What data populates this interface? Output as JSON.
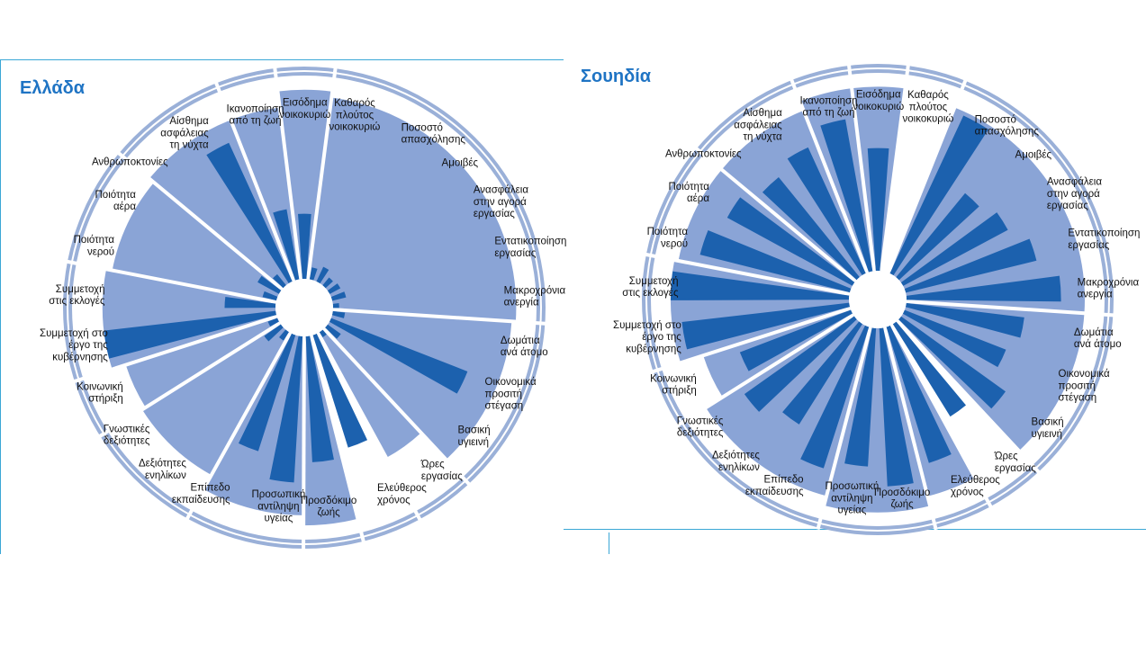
{
  "colors": {
    "ring": "#9ab0d8",
    "sector": "#8aa4d6",
    "bar": "#1c61ae",
    "frame": "#3aa7d6",
    "title": "#1f74c4"
  },
  "chart_data": [
    {
      "type": "radial-bar",
      "title": "Ελλάδα",
      "categories": [
        "Εισόδημα νοικοκυριώ",
        "Καθαρός πλούτος νοικοκυριώ",
        "Ποσοστό απασχόλησης",
        "Αμοιβές",
        "Ανασφάλεια στην αγορά εργασίας",
        "Εντατικοποίηση εργασίας",
        "Μακροχρόνια ανεργία",
        "Δωμάτια ανά άτομο",
        "Οικονομικά προσιτή στέγαση",
        "Βασική υγιεινή",
        "Ώρες εργασίας",
        "Ελεύθερος χρόνος",
        "Προσδόκιμο ζωής",
        "Προσωπική αντίληψη υγείας",
        "Επίπεδο εκπαίδευσης",
        "Δεξιότητες ενηλίκων",
        "Γνωστικές δεξιότητες",
        "Κοινωνική στήριξη",
        "Συμμετοχή στο έργο της κυβέρνησης",
        "Συμμετοχή στις εκλογές",
        "Ποιότητα νερού",
        "Ποιότητα αέρα",
        "Ανθρωποκτονίες",
        "Αίσθημα ασφάλειας τη νύχτα",
        "Ικανοποίηση από τη ζωή"
      ],
      "values": [
        0.32,
        0.06,
        0.08,
        0.05,
        0.06,
        0.07,
        0.03,
        0.06,
        0.72,
        0.08,
        0.03,
        0.58,
        0.62,
        0.72,
        0.6,
        0.05,
        0.1,
        0.05,
        0.85,
        0.25,
        0.07,
        0.12,
        0.07,
        0.75,
        0.35
      ],
      "sector_groups": [
        {
          "start": 0,
          "end": 0,
          "level": 0.93
        },
        {
          "start": 1,
          "end": 6,
          "level": 0.9
        },
        {
          "start": 7,
          "end": 9,
          "level": 0.88
        },
        {
          "start": 10,
          "end": 10,
          "level": 0.7
        },
        {
          "start": 11,
          "end": 11,
          "level": 0.0
        },
        {
          "start": 12,
          "end": 12,
          "level": 0.93
        },
        {
          "start": 13,
          "end": 14,
          "level": 0.88
        },
        {
          "start": 15,
          "end": 16,
          "level": 0.8
        },
        {
          "start": 17,
          "end": 17,
          "level": 0.78
        },
        {
          "start": 18,
          "end": 19,
          "level": 0.85
        },
        {
          "start": 20,
          "end": 21,
          "level": 0.82
        },
        {
          "start": 22,
          "end": 23,
          "level": 0.85
        },
        {
          "start": 24,
          "end": 24,
          "level": 0.85
        }
      ]
    },
    {
      "type": "radial-bar",
      "title": "Σουηδία",
      "categories": [
        "Εισόδημα νοικοκυριώ",
        "Καθαρός πλούτος νοικοκυριώ",
        "Ποσοστό απασχόλησης",
        "Αμοιβές",
        "Ανασφάλεια στην αγορά εργασίας",
        "Εντατικοποίηση εργασίας",
        "Μακροχρόνια ανεργία",
        "Δωμάτια ανά άτομο",
        "Οικονομικά προσιτή στέγαση",
        "Βασική υγιεινή",
        "Ώρες εργασίας",
        "Ελεύθερος χρόνος",
        "Προσδόκιμο ζωής",
        "Προσωπική αντίληψη υγείας",
        "Επίπεδο εκπαίδευσης",
        "Δεξιότητες ενηλίκων",
        "Γνωστικές δεξιότητες",
        "Κοινωνική στήριξη",
        "Συμμετοχή στο έργο της κυβέρνησης",
        "Συμμετοχή στις εκλογές",
        "Ποιότητα νερού",
        "Ποιότητα αέρα",
        "Ανθρωποκτονίες",
        "Αίσθημα ασφάλειας τη νύχτα",
        "Ικανοποίηση από τη ζωή"
      ],
      "values": [
        0.62,
        0.0,
        0.88,
        0.55,
        0.6,
        0.68,
        0.78,
        0.6,
        0.55,
        0.65,
        0.55,
        0.72,
        0.8,
        0.7,
        0.75,
        0.6,
        0.68,
        0.6,
        0.85,
        0.9,
        0.78,
        0.72,
        0.65,
        0.7,
        0.78
      ],
      "sector_groups": [
        {
          "start": 0,
          "end": 0,
          "level": 0.93
        },
        {
          "start": 1,
          "end": 1,
          "level": 0.0
        },
        {
          "start": 2,
          "end": 6,
          "level": 0.9
        },
        {
          "start": 7,
          "end": 9,
          "level": 0.9
        },
        {
          "start": 10,
          "end": 10,
          "level": 0.0
        },
        {
          "start": 11,
          "end": 11,
          "level": 0.88
        },
        {
          "start": 12,
          "end": 13,
          "level": 0.93
        },
        {
          "start": 14,
          "end": 16,
          "level": 0.88
        },
        {
          "start": 17,
          "end": 17,
          "level": 0.78
        },
        {
          "start": 18,
          "end": 19,
          "level": 0.9
        },
        {
          "start": 20,
          "end": 21,
          "level": 0.88
        },
        {
          "start": 22,
          "end": 23,
          "level": 0.88
        },
        {
          "start": 24,
          "end": 24,
          "level": 0.93
        }
      ]
    }
  ],
  "labels": {
    "greece": [
      [
        "Εισόδημα",
        "νοικοκυριώ"
      ],
      [
        "Καθαρός",
        "πλούτος",
        "νοικοκυριώ"
      ],
      [
        "Ποσοστό",
        "απασχόλησης"
      ],
      [
        "Αμοιβές"
      ],
      [
        "Ανασφάλεια",
        "στην αγορά",
        "εργασίας"
      ],
      [
        "Εντατικοποίηση",
        "εργασίας"
      ],
      [
        "Μακροχρόνια",
        "ανεργία"
      ],
      [
        "Δωμάτια",
        "ανά άτομο"
      ],
      [
        "Οικονομικά",
        "προσιτή",
        "στέγαση"
      ],
      [
        "Βασική",
        "υγιεινή"
      ],
      [
        "Ώρες",
        "εργασίας"
      ],
      [
        "Ελεύθερος",
        "χρόνος"
      ],
      [
        "Προσδόκιμο",
        "ζωής"
      ],
      [
        "Προσωπική",
        "αντίληψη",
        "υγείας"
      ],
      [
        "Επίπεδο",
        "εκπαίδευσης"
      ],
      [
        "Δεξιότητες",
        "ενηλίκων"
      ],
      [
        "Γνωστικές",
        "δεξιότητες"
      ],
      [
        "Κοινωνική",
        "στήριξη"
      ],
      [
        "Συμμετοχή στο",
        "έργο της",
        "κυβέρνησης"
      ],
      [
        "Συμμετοχή",
        "στις εκλογές"
      ],
      [
        "Ποιότητα",
        "νερού"
      ],
      [
        "Ποιότητα",
        "αέρα"
      ],
      [
        "Ανθρωποκτονίες"
      ],
      [
        "Αίσθημα",
        "ασφάλειας",
        "τη νύχτα"
      ],
      [
        "Ικανοποίηση",
        "από τη ζωή"
      ]
    ],
    "sweden": [
      [
        "Εισόδημα",
        "νοικοκυριώ"
      ],
      [
        "Καθαρός",
        "πλούτος",
        "νοικοκυριώ"
      ],
      [
        "Ποσοστό",
        "απασχόλησης"
      ],
      [
        "Αμοιβές"
      ],
      [
        "Ανασφάλεια",
        "στην αγορά",
        "εργασίας"
      ],
      [
        "Εντατικοποίηση",
        "εργασίας"
      ],
      [
        "Μακροχρόνια",
        "ανεργία"
      ],
      [
        "Δωμάτια",
        "ανά άτομο"
      ],
      [
        "Οικονομικά",
        "προσιτή",
        "στέγαση"
      ],
      [
        "Βασική",
        "υγιεινή"
      ],
      [
        "Ώρες",
        "εργασίας"
      ],
      [
        "Ελεύθερος",
        "χρόνος"
      ],
      [
        "Προσδόκιμο",
        "ζωής"
      ],
      [
        "Προσωπική",
        "αντίληψη",
        "υγείας"
      ],
      [
        "Επίπεδο",
        "εκπαίδευσης"
      ],
      [
        "Δεξιότητες",
        "ενηλίκων"
      ],
      [
        "Γνωστικές",
        "δεξιότητες"
      ],
      [
        "Κοινωνική",
        "στήριξη"
      ],
      [
        "Συμμετοχή στο",
        "έργο της",
        "κυβέρνησης"
      ],
      [
        "Συμμετοχή",
        "στις εκλογές"
      ],
      [
        "Ποιότητα",
        "νερού"
      ],
      [
        "Ποιότητα",
        "αέρα"
      ],
      [
        "Ανθρωποκτονίες"
      ],
      [
        "Αίσθημα",
        "ασφάλειας",
        "τη νύχτα"
      ],
      [
        "Ικανοποίηση",
        "από τη ζωή"
      ]
    ]
  }
}
